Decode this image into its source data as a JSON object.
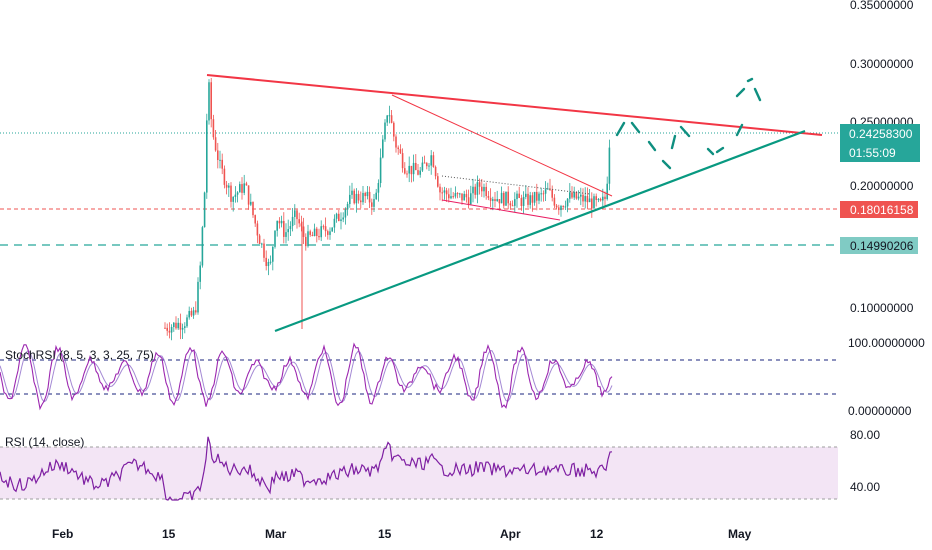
{
  "chart_data": {
    "type": "candlestick",
    "price_axis": {
      "ticks": [
        "0.35000000",
        "0.30000000",
        "0.25000000",
        "0.20000000",
        "0.10000000"
      ],
      "tick_values": [
        0.35,
        0.3,
        0.25,
        0.2,
        0.1
      ]
    },
    "x_axis": {
      "ticks": [
        "Feb",
        "15",
        "Mar",
        "15",
        "Apr",
        "12",
        "May"
      ]
    },
    "price_tags": {
      "current": {
        "value": "0.24258300",
        "countdown": "01:55:09",
        "color": "#26a69a"
      },
      "red_level": {
        "value": "0.18016158",
        "color": "#ef5350"
      },
      "teal_level": {
        "value": "0.14990206",
        "color": "#80cbc4"
      }
    },
    "drawings": {
      "upper_trendline_color": "#f23645",
      "lower_trendline_color": "#089981",
      "wedge_color": "#e91e63"
    },
    "stoch_rsi": {
      "label": "StochRSI (8, 5, 3, 3, 25, 75)",
      "axis_ticks": [
        "100.00000000",
        "0.00000000"
      ],
      "k_color": "#9c27b0",
      "d_color": "#7e57c2"
    },
    "rsi": {
      "label": "RSI (14, close)",
      "axis_ticks": [
        "80.00",
        "40.00"
      ],
      "line_color": "#7e1fa2",
      "band_color": "#f3e5f5"
    }
  }
}
